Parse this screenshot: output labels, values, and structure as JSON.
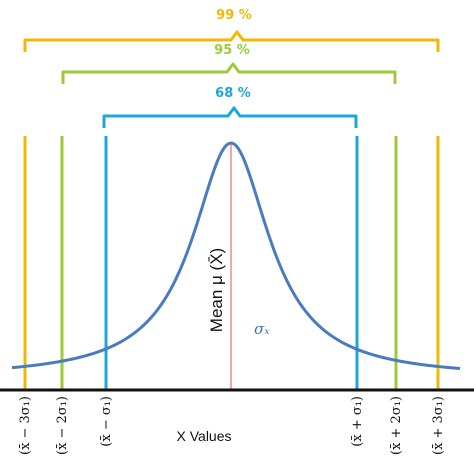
{
  "brackets": [
    {
      "label": "99 %",
      "color": "#F2B705"
    },
    {
      "label": "95 %",
      "color": "#9BCB3B"
    },
    {
      "label": "68 %",
      "color": "#1CA7DC"
    }
  ],
  "ticks": {
    "minus3": "(x̄ − 3σ₁)",
    "minus2": "(x̄ − 2σ₁)",
    "minus1": "(x̄ − σ₁)",
    "plus1": "(x̄ + σ₁)",
    "plus2": "(x̄ + 2σ₁)",
    "plus3": "(x̄ + 3σ₁)"
  },
  "x_axis_label": "X Values",
  "mean_label": "Mean μ (X̄)",
  "sigma_label": "σₓ",
  "colors": {
    "curve": "#4A7BC0",
    "mean_line": "#D9534F",
    "axis": "#111111",
    "sigma": "#3A6FB0"
  }
}
